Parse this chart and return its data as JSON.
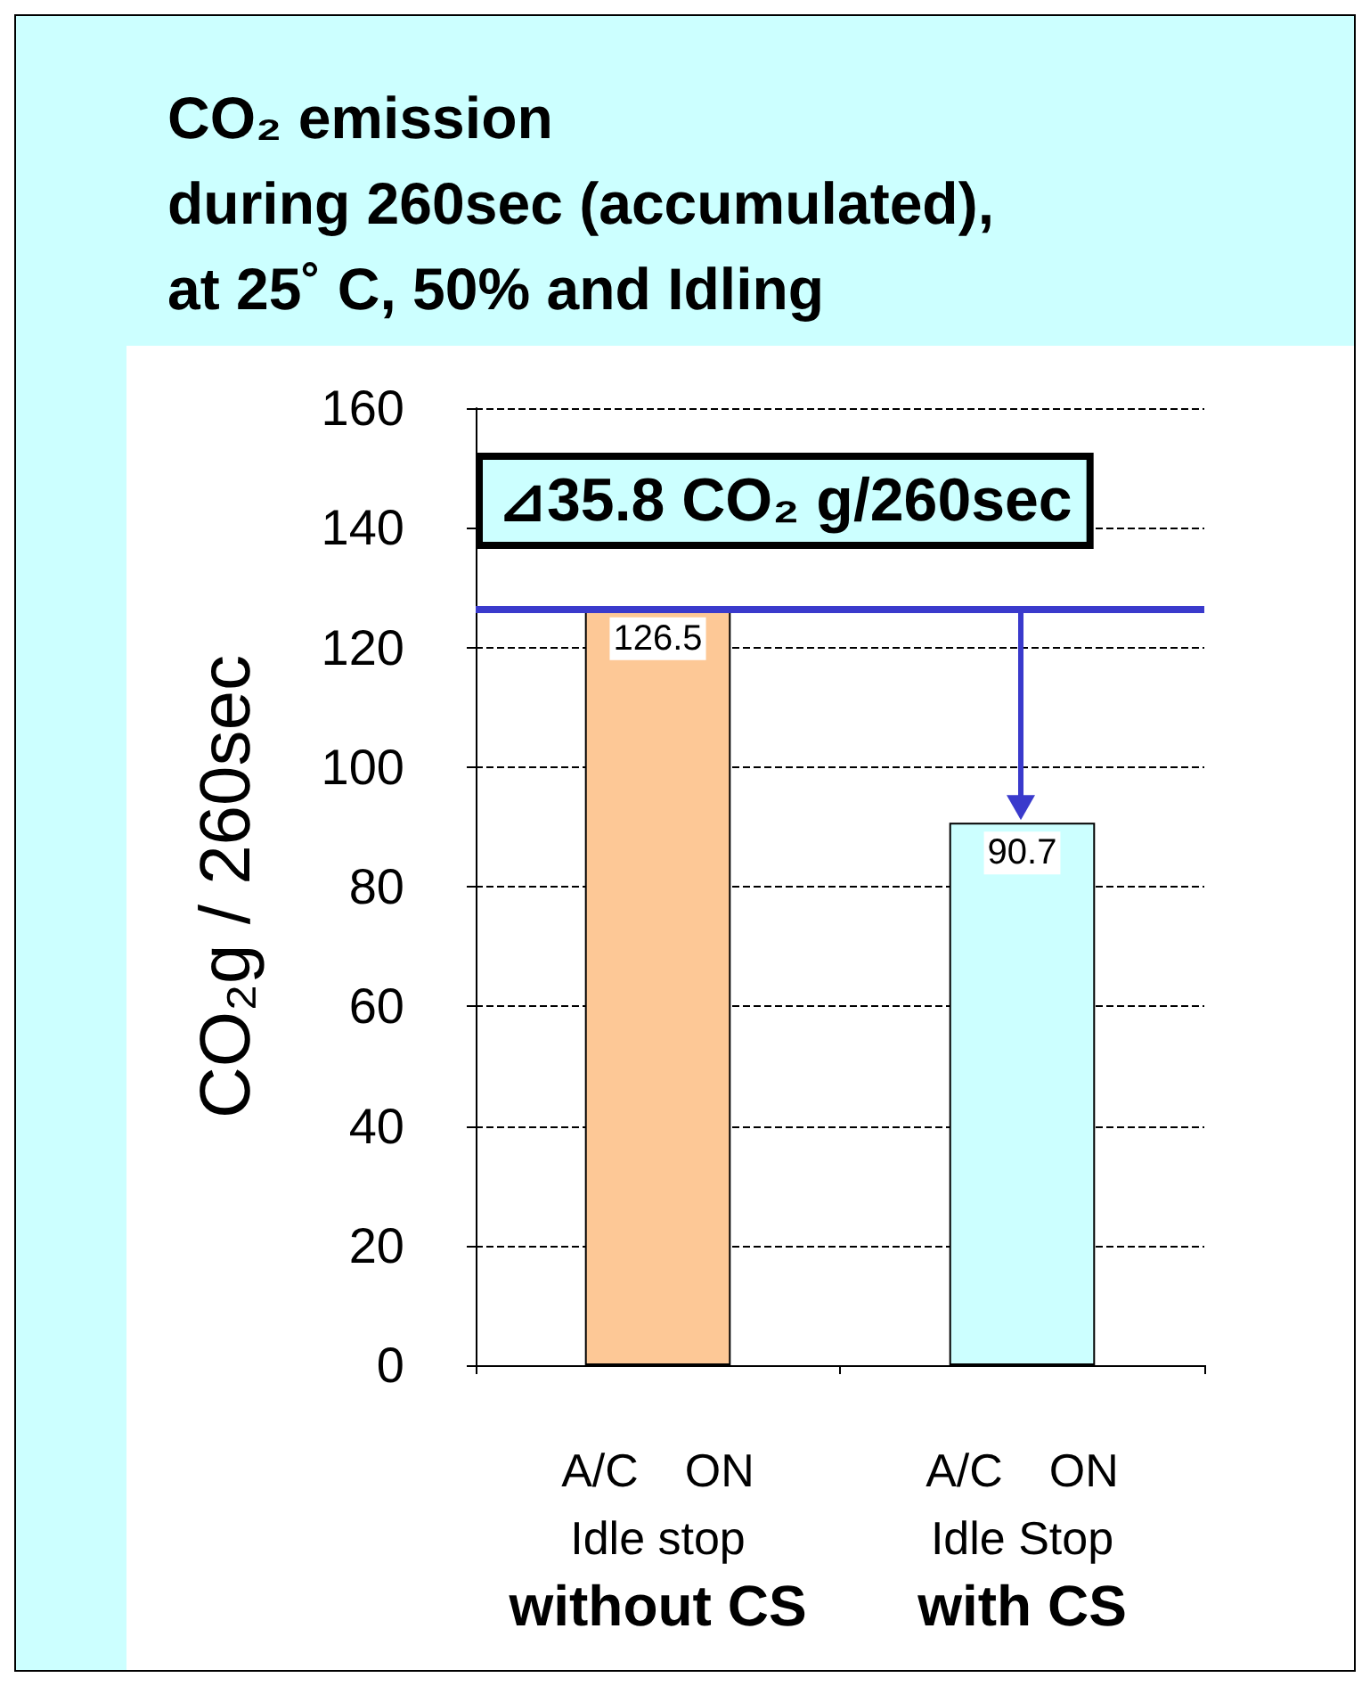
{
  "chart_data": {
    "type": "bar",
    "title": "CO₂ emission\nduring 260sec (accumulated),\nat 25˚ C, 50% and Idling",
    "ylabel": "CO₂g / 260sec",
    "categories": [
      "A/C　ON\nIdle stop\nwithout CS",
      "A/C　ON\nIdle Stop\nwith CS"
    ],
    "values": [
      126.5,
      90.7
    ],
    "colors": [
      "#fdc896",
      "#ccffff"
    ],
    "ylim": [
      0,
      160
    ],
    "yticks": [
      0,
      20,
      40,
      60,
      80,
      100,
      120,
      140,
      160
    ],
    "grid": "y",
    "data_labels": true,
    "ref_lines": [
      {
        "axis": "y",
        "value": 126.5,
        "color": "#3a3acc"
      }
    ],
    "annotations": [
      "⊿35.8 CO₂ g/260sec"
    ]
  }
}
